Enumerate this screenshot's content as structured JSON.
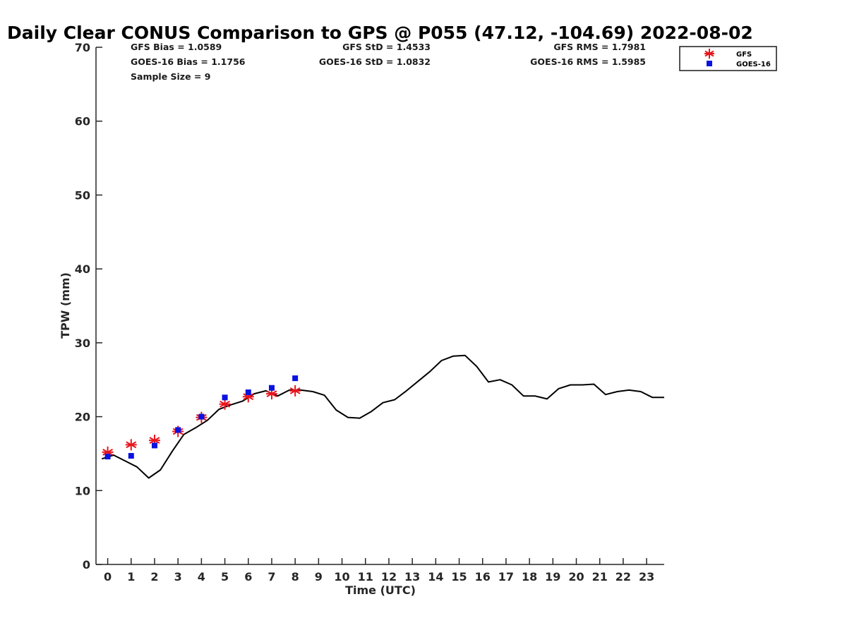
{
  "chart_data": {
    "type": "line",
    "title": "Daily Clear CONUS Comparison to GPS @ P055 (47.12, -104.69) 2022-08-02",
    "xlabel": "Time (UTC)",
    "ylabel": "TPW (mm)",
    "xlim": [
      -0.5,
      23.75
    ],
    "ylim": [
      0,
      70
    ],
    "xticks": [
      "0",
      "1",
      "2",
      "3",
      "4",
      "5",
      "6",
      "7",
      "8",
      "9",
      "10",
      "11",
      "12",
      "13",
      "14",
      "15",
      "16",
      "17",
      "18",
      "19",
      "20",
      "21",
      "22",
      "23"
    ],
    "yticks": [
      "0",
      "10",
      "20",
      "30",
      "40",
      "50",
      "60",
      "70"
    ],
    "stats": {
      "gfs_bias": "GFS Bias = 1.0589",
      "goes_bias": "GOES-16 Bias = 1.1756",
      "sample_size": "Sample Size = 9",
      "gfs_std": "GFS StD = 1.4533",
      "goes_std": "GOES-16 StD = 1.0832",
      "gfs_rms": "GFS RMS = 1.7981",
      "goes_rms": "GOES-16 RMS = 1.5985"
    },
    "legend": {
      "placement": "top-right",
      "entries": [
        "GFS",
        "GOES-16"
      ]
    },
    "colors": {
      "gfs": "#e8141b",
      "goes": "#0a12e0",
      "gps": "#000000"
    },
    "series": [
      {
        "kind": "line",
        "x": [
          -0.25,
          0.25,
          0.75,
          1.25,
          1.75,
          2.25,
          2.75,
          3.25,
          3.75,
          4.25,
          4.75,
          5.25,
          5.75,
          6.25,
          6.75,
          7.25,
          7.75,
          8.25,
          8.75,
          9.25,
          9.75,
          10.25,
          10.75,
          11.25,
          11.75,
          12.25,
          12.75,
          13.25,
          13.75,
          14.25,
          14.75,
          15.25,
          15.75,
          16.25,
          16.75,
          17.25,
          17.75,
          18.25,
          18.75,
          19.25,
          19.75,
          20.25,
          20.75,
          21.25,
          21.75,
          22.25,
          22.75,
          23.25,
          23.75
        ],
        "values": [
          14.3,
          14.8,
          14.0,
          13.2,
          11.7,
          12.8,
          15.3,
          17.6,
          18.5,
          19.5,
          21.0,
          21.6,
          22.1,
          23.1,
          23.5,
          22.8,
          23.6,
          23.6,
          23.4,
          22.9,
          20.9,
          19.9,
          19.8,
          20.7,
          21.9,
          22.3,
          23.5,
          24.8,
          26.1,
          27.6,
          28.2,
          28.3,
          26.8,
          24.7,
          25.0,
          24.3,
          22.8,
          22.8,
          22.4,
          23.8,
          24.3,
          24.3,
          24.4,
          23.0,
          23.4,
          23.6,
          23.4,
          22.6,
          22.6
        ]
      },
      {
        "name": "GFS",
        "kind": "scatter",
        "marker": "asterisk",
        "x": [
          0,
          1,
          2,
          3,
          4,
          5,
          6,
          7,
          8
        ],
        "values": [
          15.2,
          16.2,
          16.8,
          18.0,
          19.9,
          21.7,
          22.7,
          23.1,
          23.5
        ]
      },
      {
        "name": "GOES-16",
        "kind": "scatter",
        "marker": "square",
        "x": [
          0,
          1,
          2,
          3,
          4,
          5,
          6,
          7,
          8
        ],
        "values": [
          14.6,
          14.7,
          16.1,
          18.2,
          20.0,
          22.6,
          23.3,
          23.9,
          25.2
        ]
      }
    ]
  }
}
